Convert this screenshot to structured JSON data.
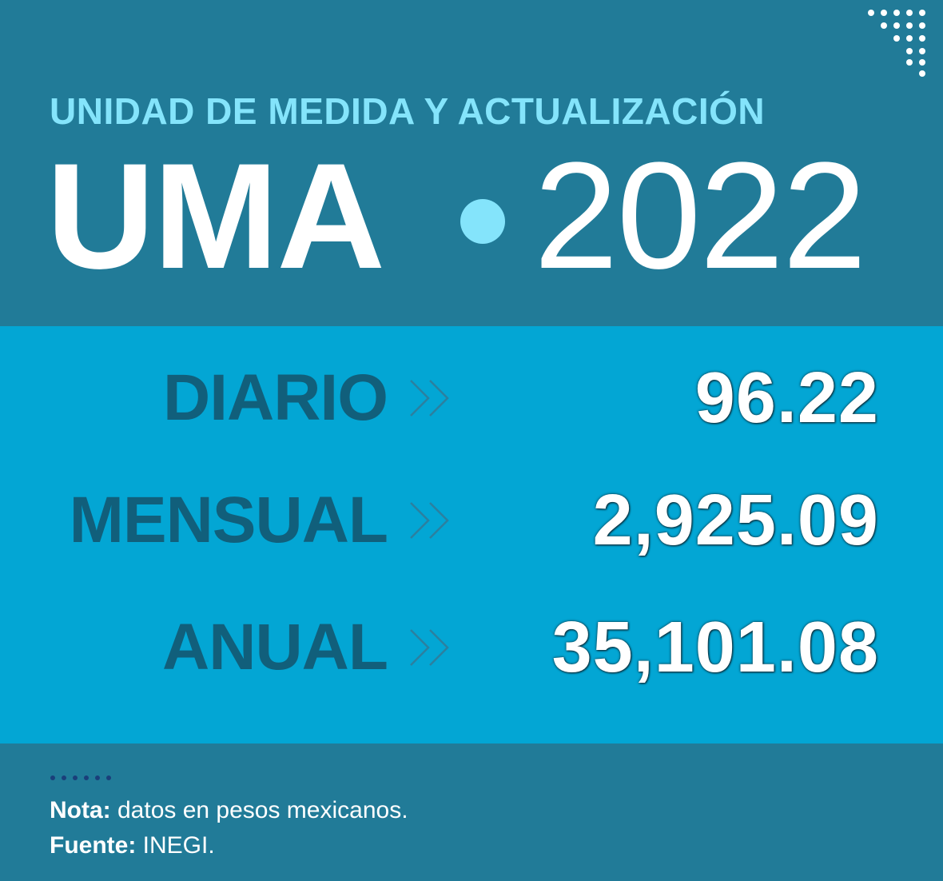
{
  "header": {
    "subtitle": "UNIDAD DE MEDIDA Y ACTUALIZACIÓN",
    "title": "UMA",
    "year": "2022"
  },
  "rows": [
    {
      "label": "DIARIO",
      "value": "96.22"
    },
    {
      "label": "MENSUAL",
      "value": "2,925.09"
    },
    {
      "label": "ANUAL",
      "value": "35,101.08"
    }
  ],
  "footer": {
    "note_label": "Nota:",
    "note_text": " datos en pesos mexicanos.",
    "source_label": "Fuente:",
    "source_text": " INEGI."
  },
  "colors": {
    "background": "#217b98",
    "band": "#03a6d4",
    "accent": "#84e4fb",
    "label": "#115f7b",
    "value": "#ffffff"
  },
  "icons": {
    "corner_decoration": "dot-grid-icon",
    "separator": "circle-dot-icon",
    "arrow": "double-chevron-right-icon",
    "footer_decoration": "dots-icon"
  }
}
